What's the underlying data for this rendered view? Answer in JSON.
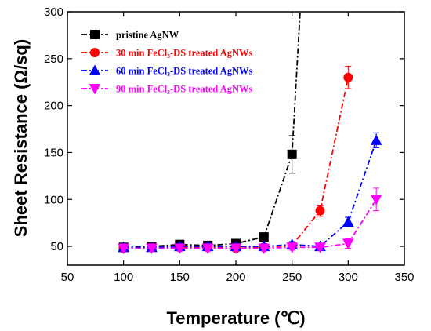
{
  "chart_data": {
    "type": "line",
    "xlabel": "Temperature (℃)",
    "ylabel": "Sheet Resistance (Ω/sq)",
    "xlim": [
      50,
      350
    ],
    "ylim": [
      30,
      300
    ],
    "xticks": [
      50,
      100,
      150,
      200,
      250,
      300,
      350
    ],
    "yticks": [
      50,
      100,
      150,
      200,
      250,
      300
    ],
    "grid": false,
    "legend_position": "top-left",
    "series": [
      {
        "name": "pristine AgNW",
        "color": "#000000",
        "marker": "square",
        "x": [
          100,
          125,
          150,
          175,
          200,
          225,
          250
        ],
        "y": [
          49,
          50,
          52,
          51,
          53,
          60,
          148
        ],
        "yerr": [
          3,
          3,
          4,
          3,
          4,
          4,
          20
        ],
        "extends_beyond_top": true
      },
      {
        "name": "30 min FeCl₃-DS treated AgNWs",
        "color": "#ff0000",
        "marker": "circle",
        "x": [
          100,
          125,
          150,
          175,
          200,
          225,
          250,
          275,
          300
        ],
        "y": [
          48,
          49,
          49,
          49,
          48,
          49,
          51,
          88,
          230
        ],
        "yerr": [
          3,
          3,
          3,
          3,
          3,
          3,
          3,
          6,
          12
        ]
      },
      {
        "name": "60 min FeCl₃-DS treated AgNWs",
        "color": "#0000ff",
        "marker": "triangle-up",
        "x": [
          100,
          125,
          150,
          175,
          200,
          225,
          250,
          275,
          300,
          325
        ],
        "y": [
          49,
          49,
          50,
          50,
          50,
          50,
          52,
          50,
          76,
          163
        ],
        "yerr": [
          3,
          3,
          3,
          3,
          3,
          3,
          3,
          3,
          5,
          8
        ]
      },
      {
        "name": "90 min FeCl₃-DS treated AgNWs",
        "color": "#ff00ff",
        "marker": "triangle-down",
        "x": [
          100,
          125,
          150,
          175,
          200,
          225,
          250,
          275,
          300,
          325
        ],
        "y": [
          48,
          48,
          48,
          48,
          48,
          48,
          49,
          49,
          53,
          100
        ],
        "yerr": [
          3,
          3,
          3,
          3,
          3,
          3,
          3,
          3,
          5,
          12
        ]
      }
    ]
  }
}
